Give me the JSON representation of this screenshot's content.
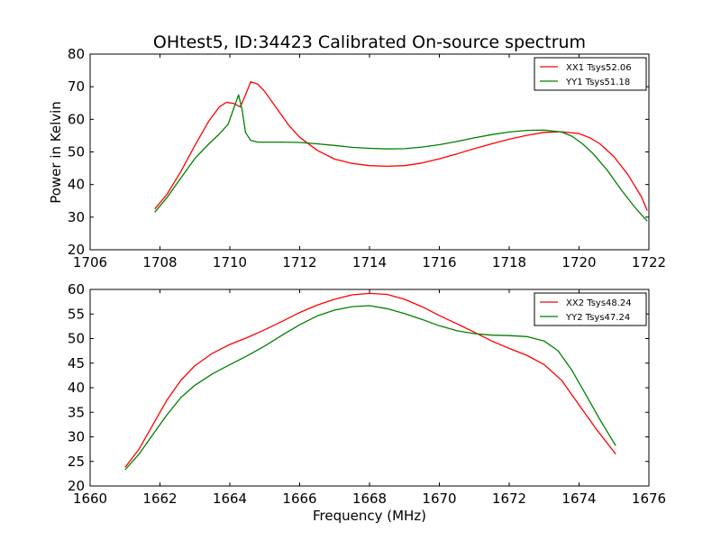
{
  "title": "OHtest5, ID:34423 Calibrated On-source spectrum",
  "ylabel": "Power in Kelvin",
  "xlabel": "Frequency (MHz)",
  "colors": {
    "xx": "#ff0000",
    "yy": "#008000"
  },
  "chart_data": [
    {
      "type": "line",
      "xlim": [
        1706,
        1722
      ],
      "ylim": [
        20,
        80
      ],
      "xticks": [
        1706,
        1708,
        1710,
        1712,
        1714,
        1716,
        1718,
        1720,
        1722
      ],
      "yticks": [
        20,
        30,
        40,
        50,
        60,
        70,
        80
      ],
      "legend": "top-right",
      "series": [
        {
          "name": "XX1 Tsys52.06",
          "color": "#ff0000",
          "x": [
            1707.85,
            1708.2,
            1708.6,
            1709.0,
            1709.4,
            1709.7,
            1709.9,
            1710.1,
            1710.3,
            1710.45,
            1710.6,
            1710.8,
            1711.0,
            1711.3,
            1711.7,
            1712.0,
            1712.5,
            1713.0,
            1713.5,
            1714.0,
            1714.5,
            1715.0,
            1715.5,
            1716.0,
            1716.5,
            1717.0,
            1717.5,
            1718.0,
            1718.5,
            1719.0,
            1719.5,
            1720.0,
            1720.3,
            1720.6,
            1721.0,
            1721.4,
            1721.8,
            1721.95
          ],
          "y": [
            32.5,
            37,
            44,
            52,
            59.5,
            63.8,
            65.2,
            64.9,
            63.8,
            67.5,
            71.5,
            70.8,
            68.5,
            64,
            58,
            54.5,
            50.5,
            47.8,
            46.5,
            45.8,
            45.6,
            45.8,
            46.6,
            47.9,
            49.4,
            51,
            52.5,
            53.9,
            55.1,
            56,
            56.2,
            55.6,
            54.4,
            52.5,
            48.5,
            43,
            36,
            32
          ]
        },
        {
          "name": "YY1 Tsys51.18",
          "color": "#008000",
          "x": [
            1707.85,
            1708.2,
            1708.6,
            1709.0,
            1709.4,
            1709.7,
            1709.95,
            1710.1,
            1710.25,
            1710.35,
            1710.45,
            1710.6,
            1710.8,
            1711.0,
            1711.5,
            1712.0,
            1712.5,
            1713.0,
            1713.5,
            1714.0,
            1714.5,
            1715.0,
            1715.5,
            1716.0,
            1716.5,
            1717.0,
            1717.5,
            1718.0,
            1718.5,
            1719.0,
            1719.5,
            1719.8,
            1720.1,
            1720.4,
            1720.8,
            1721.2,
            1721.6,
            1721.95
          ],
          "y": [
            31.5,
            36,
            42,
            48,
            52.5,
            55.5,
            58.5,
            63,
            67.5,
            63,
            56,
            53.5,
            53,
            53,
            53,
            52.9,
            52.5,
            52,
            51.4,
            51.1,
            50.9,
            51,
            51.5,
            52.2,
            53.2,
            54.3,
            55.3,
            56.1,
            56.6,
            56.7,
            56.1,
            54.8,
            52.5,
            49.5,
            44.5,
            38.5,
            33,
            28.8
          ]
        }
      ]
    },
    {
      "type": "line",
      "xlim": [
        1660,
        1676
      ],
      "ylim": [
        20,
        60
      ],
      "xticks": [
        1660,
        1662,
        1664,
        1666,
        1668,
        1670,
        1672,
        1674,
        1676
      ],
      "yticks": [
        20,
        25,
        30,
        35,
        40,
        45,
        50,
        55,
        60
      ],
      "legend": "top-right",
      "series": [
        {
          "name": "XX2 Tsys48.24",
          "color": "#ff0000",
          "x": [
            1661.0,
            1661.4,
            1661.8,
            1662.2,
            1662.6,
            1663.0,
            1663.5,
            1664.0,
            1664.5,
            1665.0,
            1665.5,
            1666.0,
            1666.5,
            1667.0,
            1667.5,
            1668.0,
            1668.5,
            1669.0,
            1669.5,
            1670.0,
            1670.5,
            1671.0,
            1671.5,
            1672.0,
            1672.5,
            1673.0,
            1673.5,
            1674.0,
            1674.5,
            1675.05
          ],
          "y": [
            23.8,
            27.5,
            32.5,
            37.5,
            41.5,
            44.5,
            47,
            48.8,
            50.2,
            51.8,
            53.5,
            55.3,
            56.8,
            58,
            58.9,
            59.2,
            59,
            58,
            56.5,
            54.7,
            53,
            51.3,
            49.5,
            48,
            46.6,
            44.7,
            41.5,
            36.5,
            31.5,
            26.5
          ]
        },
        {
          "name": "YY2 Tsys47.24",
          "color": "#008000",
          "x": [
            1661.0,
            1661.4,
            1661.8,
            1662.2,
            1662.6,
            1663.0,
            1663.5,
            1664.0,
            1664.5,
            1665.0,
            1665.5,
            1666.0,
            1666.5,
            1667.0,
            1667.5,
            1668.0,
            1668.5,
            1669.0,
            1669.5,
            1670.0,
            1670.5,
            1671.0,
            1671.5,
            1672.0,
            1672.5,
            1673.0,
            1673.4,
            1673.8,
            1674.2,
            1674.6,
            1675.05
          ],
          "y": [
            23.3,
            26.5,
            30.5,
            34.5,
            38,
            40.5,
            42.8,
            44.7,
            46.5,
            48.5,
            50.7,
            52.8,
            54.6,
            55.8,
            56.5,
            56.7,
            56.1,
            55.1,
            53.9,
            52.6,
            51.6,
            51,
            50.7,
            50.6,
            50.4,
            49.5,
            47.5,
            43.5,
            38.5,
            33.5,
            28.2
          ]
        }
      ]
    }
  ]
}
